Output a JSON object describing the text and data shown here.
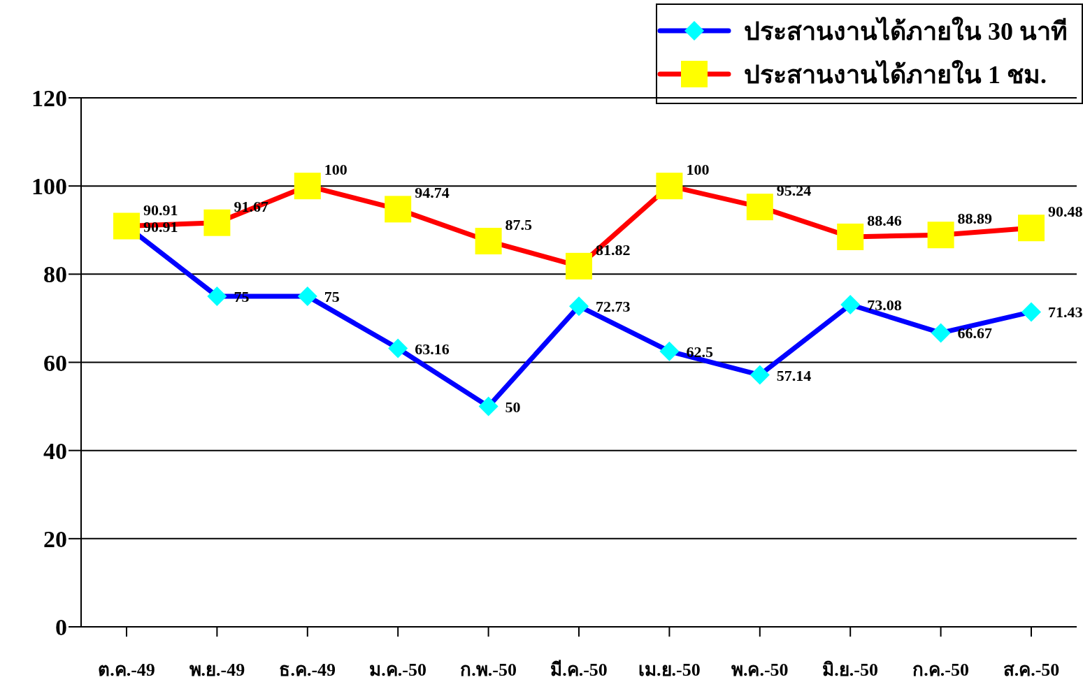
{
  "chart_data": {
    "type": "line",
    "categories": [
      "ต.ค.-49",
      "พ.ย.-49",
      "ธ.ค.-49",
      "ม.ค.-50",
      "ก.พ.-50",
      "มี.ค.-50",
      "เม.ย.-50",
      "พ.ค.-50",
      "มิ.ย.-50",
      "ก.ค.-50",
      "ส.ค.-50"
    ],
    "series": [
      {
        "name": "ประสานงานได้ภายใน 30 นาที",
        "color": "#0000ff",
        "marker": "diamond",
        "colors": [
          "#00ffff",
          "#00ffff",
          "#00ffff",
          "#00ffff",
          "#00ffff",
          "#00ffff",
          "#00ffff",
          "#00ffff",
          "#00ffff",
          "#00ffff",
          "#00ffff"
        ],
        "values": [
          90.91,
          75,
          75,
          63.16,
          50,
          72.73,
          62.5,
          57.14,
          73.08,
          66.67,
          71.43
        ]
      },
      {
        "name": "ประสานงานได้ภายใน 1 ชม.",
        "color": "#ff0000",
        "marker": "square",
        "colors": [
          "#ffff00",
          "#ffff00",
          "#ffff00",
          "#ffff00",
          "#ffff00",
          "#ffff00",
          "#ffff00",
          "#ffff00",
          "#ffff00",
          "#ffff00",
          "#ffff00"
        ],
        "values": [
          90.91,
          91.67,
          100,
          94.74,
          87.5,
          81.82,
          100,
          95.24,
          88.46,
          88.89,
          90.48
        ]
      }
    ],
    "ylim": [
      0,
      120
    ],
    "yticks": [
      0,
      20,
      40,
      60,
      80,
      100,
      120
    ],
    "grid": "y",
    "legend": "top right",
    "data_labels": true,
    "line_style": "solid"
  }
}
